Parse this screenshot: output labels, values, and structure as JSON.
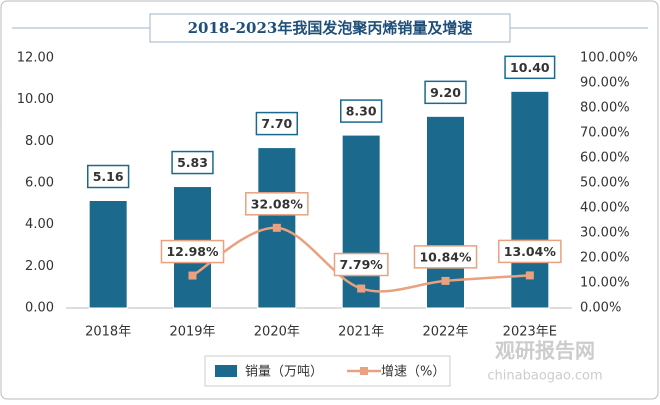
{
  "chart_data": {
    "type": "combo",
    "title": "2018-2023年我国发泡聚丙烯销量及增速",
    "categories": [
      "2018年",
      "2019年",
      "2020年",
      "2021年",
      "2022年",
      "2023年E"
    ],
    "series": [
      {
        "name": "销量（万吨）",
        "type": "bar",
        "color": "#1b6a8d",
        "values": [
          5.16,
          5.83,
          7.7,
          8.3,
          9.2,
          10.4
        ],
        "value_labels": [
          "5.16",
          "5.83",
          "7.70",
          "8.30",
          "9.20",
          "10.40"
        ]
      },
      {
        "name": "增速（%）",
        "type": "line",
        "axis": "y2",
        "color": "#e9a17f",
        "values": [
          null,
          12.98,
          32.08,
          7.79,
          10.84,
          13.04
        ],
        "value_labels": [
          null,
          "12.98%",
          "32.08%",
          "7.79%",
          "10.84%",
          "13.04%"
        ]
      }
    ],
    "ylim": [
      0,
      12
    ],
    "yticks": [
      {
        "value": 0,
        "label": "0.00"
      },
      {
        "value": 2,
        "label": "2.00"
      },
      {
        "value": 4,
        "label": "4.00"
      },
      {
        "value": 6,
        "label": "6.00"
      },
      {
        "value": 8,
        "label": "8.00"
      },
      {
        "value": 10,
        "label": "10.00"
      },
      {
        "value": 12,
        "label": "12.00"
      }
    ],
    "y2lim": [
      0,
      100
    ],
    "y2ticks": [
      {
        "value": 0,
        "label": "0.00%"
      },
      {
        "value": 10,
        "label": "10.00%"
      },
      {
        "value": 20,
        "label": "20.00%"
      },
      {
        "value": 30,
        "label": "30.00%"
      },
      {
        "value": 40,
        "label": "40.00%"
      },
      {
        "value": 50,
        "label": "50.00%"
      },
      {
        "value": 60,
        "label": "60.00%"
      },
      {
        "value": 70,
        "label": "70.00%"
      },
      {
        "value": 80,
        "label": "80.00%"
      },
      {
        "value": 90,
        "label": "90.00%"
      },
      {
        "value": 100,
        "label": "100.00%"
      }
    ],
    "watermark": {
      "brand": "观研报告网",
      "url": "chinabaogao.com"
    }
  }
}
